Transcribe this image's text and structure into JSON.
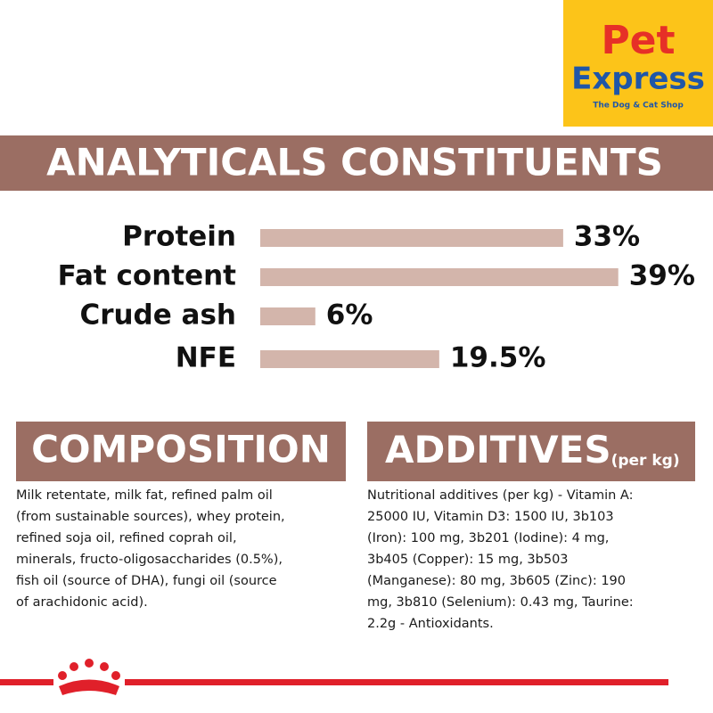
{
  "chart_data": {
    "type": "bar",
    "orientation": "horizontal",
    "title": "ANALYTICALS CONSTITUENTS",
    "categories": [
      "Protein",
      "Fat content",
      "Crude ash",
      "NFE"
    ],
    "values": [
      33,
      39,
      6,
      19.5
    ],
    "value_labels": [
      "33%",
      "39%",
      "6%",
      "19.5%"
    ],
    "color": "#d3b5ab"
  },
  "logo": {
    "line1": "Pet",
    "line2": "Express",
    "tagline": "The Dog & Cat Shop"
  },
  "composition": {
    "title": "COMPOSITION",
    "lines": [
      "Milk retentate, milk fat, refined palm oil",
      "(from sustainable sources), whey protein,",
      "refined soja oil, refined coprah oil,",
      "minerals, fructo-oligosaccharides (0.5%),",
      "fish oil (source of DHA), fungi oil (source",
      "of arachidonic acid)."
    ]
  },
  "additives": {
    "title": "ADDITIVES",
    "title_suffix": "(per kg)",
    "lines": [
      "Nutritional additives (per kg) - Vitamin A:",
      "25000 IU, Vitamin D3: 1500 IU, 3b103",
      "(Iron): 100 mg, 3b201 (Iodine): 4 mg,",
      "3b405 (Copper): 15 mg, 3b503",
      "(Manganese): 80 mg, 3b605 (Zinc): 190",
      "mg, 3b810 (Selenium): 0.43 mg, Taurine:",
      "2.2g - Antioxidants."
    ]
  }
}
